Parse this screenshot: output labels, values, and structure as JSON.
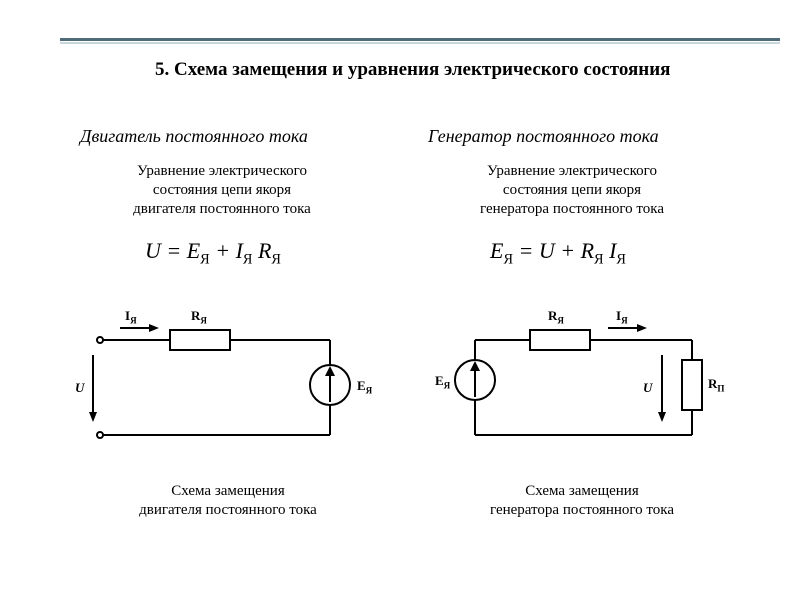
{
  "colors": {
    "topbar_dark": "#4f6b7a",
    "topbar_light": "#c9d6de",
    "text": "#000000",
    "stroke": "#000000",
    "bg": "#ffffff"
  },
  "section_title": "5. Схема замещения и уравнения электрического состояния",
  "columns": {
    "left": {
      "heading": "Двигатель постоянного тока",
      "subdesc_l1": "Уравнение электрического",
      "subdesc_l2": "состояния цепи якоря",
      "subdesc_l3": "двигателя постоянного тока",
      "equation_html": "U = E<sub>Я</sub> + I<sub>Я</sub> R<sub>Я</sub>",
      "caption_l1": "Схема замещения",
      "caption_l2": "двигателя постоянного тока",
      "diagram": {
        "type": "circuit",
        "labels": {
          "I": "I<sub>Я</sub>",
          "R": "R<sub>Я</sub>",
          "E": "E<sub>Я</sub>",
          "U": "U"
        },
        "stroke_width": 2,
        "node_radius": 3,
        "emf_radius": 20,
        "arrow_len": 10
      }
    },
    "right": {
      "heading": "Генератор постоянного тока",
      "subdesc_l1": "Уравнение электрического",
      "subdesc_l2": "состояния цепи якоря",
      "subdesc_l3": "генератора постоянного тока",
      "equation_html": "E<sub>Я</sub> = U + R<sub>Я</sub> I<sub>Я</sub>",
      "caption_l1": "Схема замещения",
      "caption_l2": "генератора постоянного тока",
      "diagram": {
        "type": "circuit",
        "labels": {
          "I": "I<sub>Я</sub>",
          "R": "R<sub>Я</sub>",
          "E": "E<sub>Я</sub>",
          "U": "U",
          "RP": "R<sub>П</sub>"
        },
        "stroke_width": 2,
        "node_radius": 3,
        "emf_radius": 20,
        "arrow_len": 10
      }
    }
  }
}
